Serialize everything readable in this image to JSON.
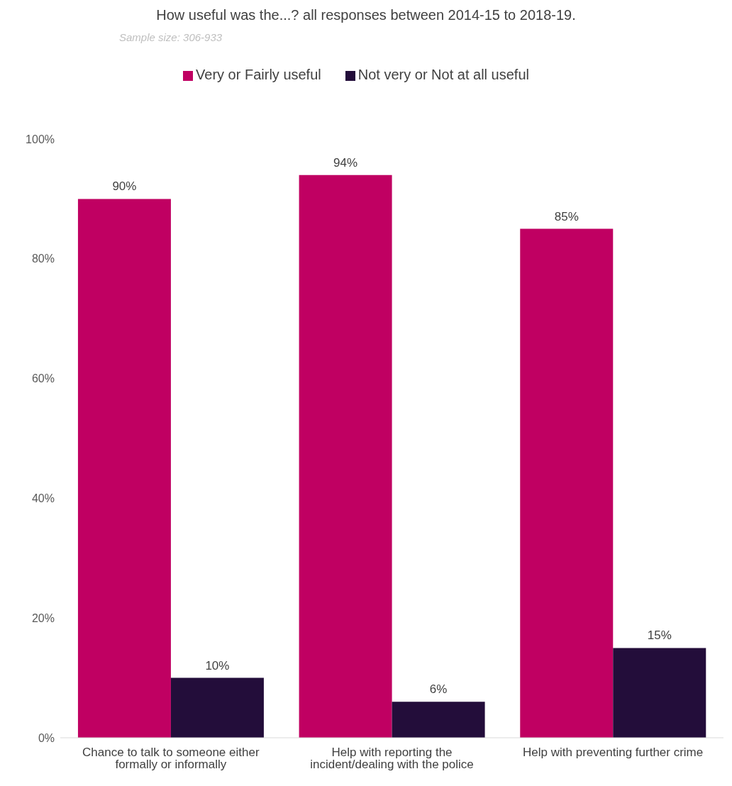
{
  "chart_data": {
    "type": "bar",
    "title": "How useful was the...? all responses between 2014-15 to 2018-19.",
    "subtitle": "Sample size: 306-933",
    "categories": [
      "Chance to talk to someone either formally or informally",
      "Help with reporting the incident/dealing with the police",
      "Help with preventing further crime"
    ],
    "series": [
      {
        "name": "Very or Fairly useful",
        "color": "#c00062",
        "values": [
          90,
          94,
          85
        ],
        "value_labels": [
          "90%",
          "94%",
          "85%"
        ]
      },
      {
        "name": "Not very or Not at all useful",
        "color": "#230d3a",
        "values": [
          10,
          6,
          15
        ],
        "value_labels": [
          "10%",
          "6%",
          "15%"
        ]
      }
    ],
    "ylim": [
      0,
      100
    ],
    "yticks": [
      {
        "value": 0,
        "label": "0%"
      },
      {
        "value": 20,
        "label": "20%"
      },
      {
        "value": 40,
        "label": "40%"
      },
      {
        "value": 60,
        "label": "60%"
      },
      {
        "value": 80,
        "label": "80%"
      },
      {
        "value": 100,
        "label": "100%"
      }
    ],
    "grid": false,
    "legend": "top"
  }
}
